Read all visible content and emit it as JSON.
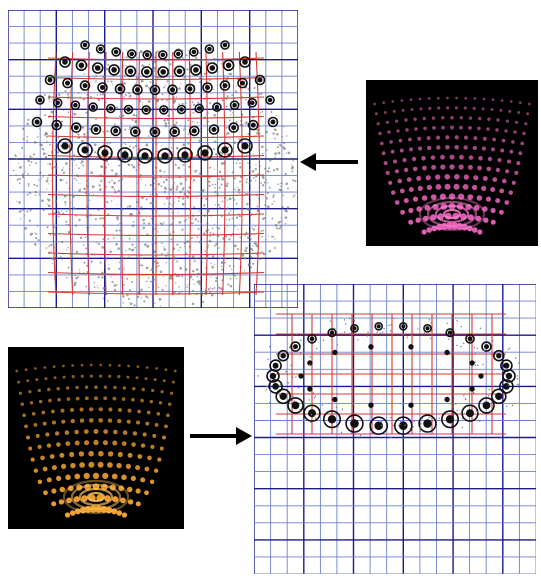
{
  "figure": {
    "panels": [
      {
        "id": "top-grid",
        "content": "deformed-spot-pattern-sphere"
      },
      {
        "id": "pink-render",
        "content": "pink-spot-hemisphere"
      },
      {
        "id": "bottom-grid",
        "content": "deformed-spot-pattern-ring"
      },
      {
        "id": "orange-render",
        "content": "orange-spot-hemisphere"
      }
    ],
    "arrows": [
      {
        "from": "pink-render",
        "to": "top-grid",
        "direction": "left"
      },
      {
        "from": "orange-render",
        "to": "bottom-grid",
        "direction": "right"
      }
    ],
    "colors": {
      "grid_major": "#1a1a8c",
      "grid_minor": "#6f7fd0",
      "grid_red": "#d23a3a",
      "dots": "#111111",
      "scatter": "#7a7a7a",
      "pink": "#e05fb5",
      "orange": "#f0a030",
      "arrow": "#000000"
    }
  }
}
